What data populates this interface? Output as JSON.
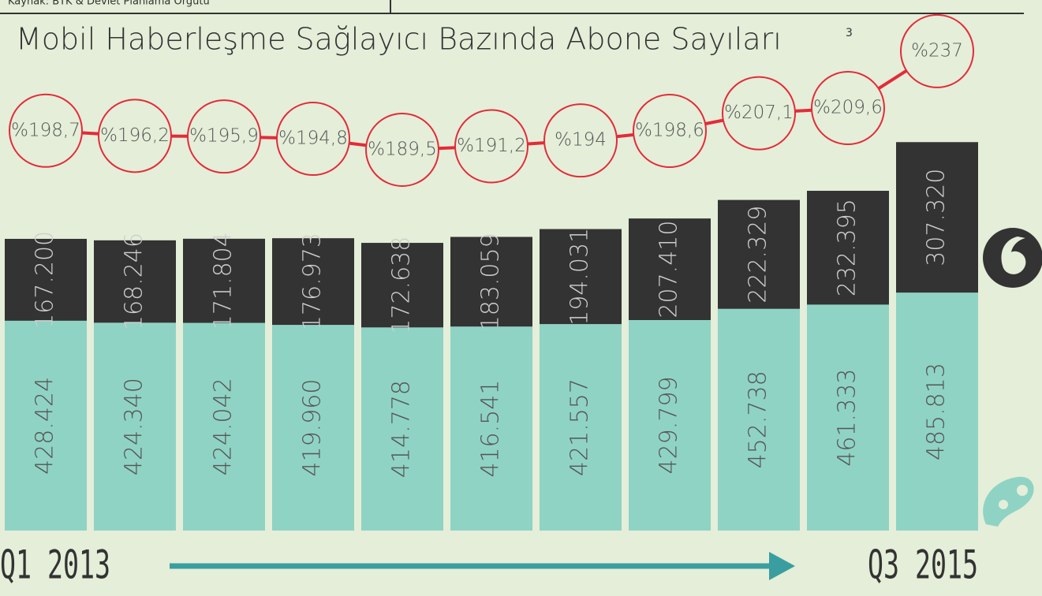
{
  "source": "Kaynak: BTK & Devlet Planlama Örgütü",
  "chart_data": {
    "type": "bar",
    "stacked": true,
    "title": "Mobil Haberleşme Sağlayıcı Bazında Abone Sayıları",
    "title_note": "3",
    "categories": [
      "Q1 2013",
      null,
      null,
      null,
      null,
      null,
      null,
      null,
      null,
      null,
      "Q3 2015"
    ],
    "ylim": [
      0,
      800000
    ],
    "y2lim": [
      180,
      240
    ],
    "series": [
      {
        "color": "#8fd3c5",
        "values": [
          428424,
          424340,
          424042,
          419960,
          414778,
          416541,
          421557,
          429799,
          452738,
          461333,
          485813
        ],
        "value_labels": [
          "428.424",
          "424.340",
          "424.042",
          "419.960",
          "414.778",
          "416.541",
          "421.557",
          "429.799",
          "452.738",
          "461.333",
          "485.813"
        ]
      },
      {
        "color": "#333333",
        "values": [
          167200,
          168246,
          171804,
          176973,
          172638,
          183059,
          194031,
          207410,
          222329,
          232395,
          307320
        ],
        "value_labels": [
          "167.200",
          "168.246",
          "171.804",
          "176.973",
          "172.638",
          "183.059",
          "194.031",
          "207.410",
          "222.329",
          "232.395",
          "307.320"
        ]
      },
      {
        "color": "#e32b3a",
        "axis": "y2",
        "values": [
          198.7,
          196.2,
          195.9,
          194.8,
          189.5,
          191.2,
          194,
          198.6,
          207.1,
          209.6,
          237
        ],
        "value_labels": [
          "%198,7",
          "%196,2",
          "%195,9",
          "%194,8",
          "%189,5",
          "%191,2",
          "%194",
          "%198,6",
          "%207,1",
          "%209,6",
          "%237"
        ]
      }
    ]
  }
}
